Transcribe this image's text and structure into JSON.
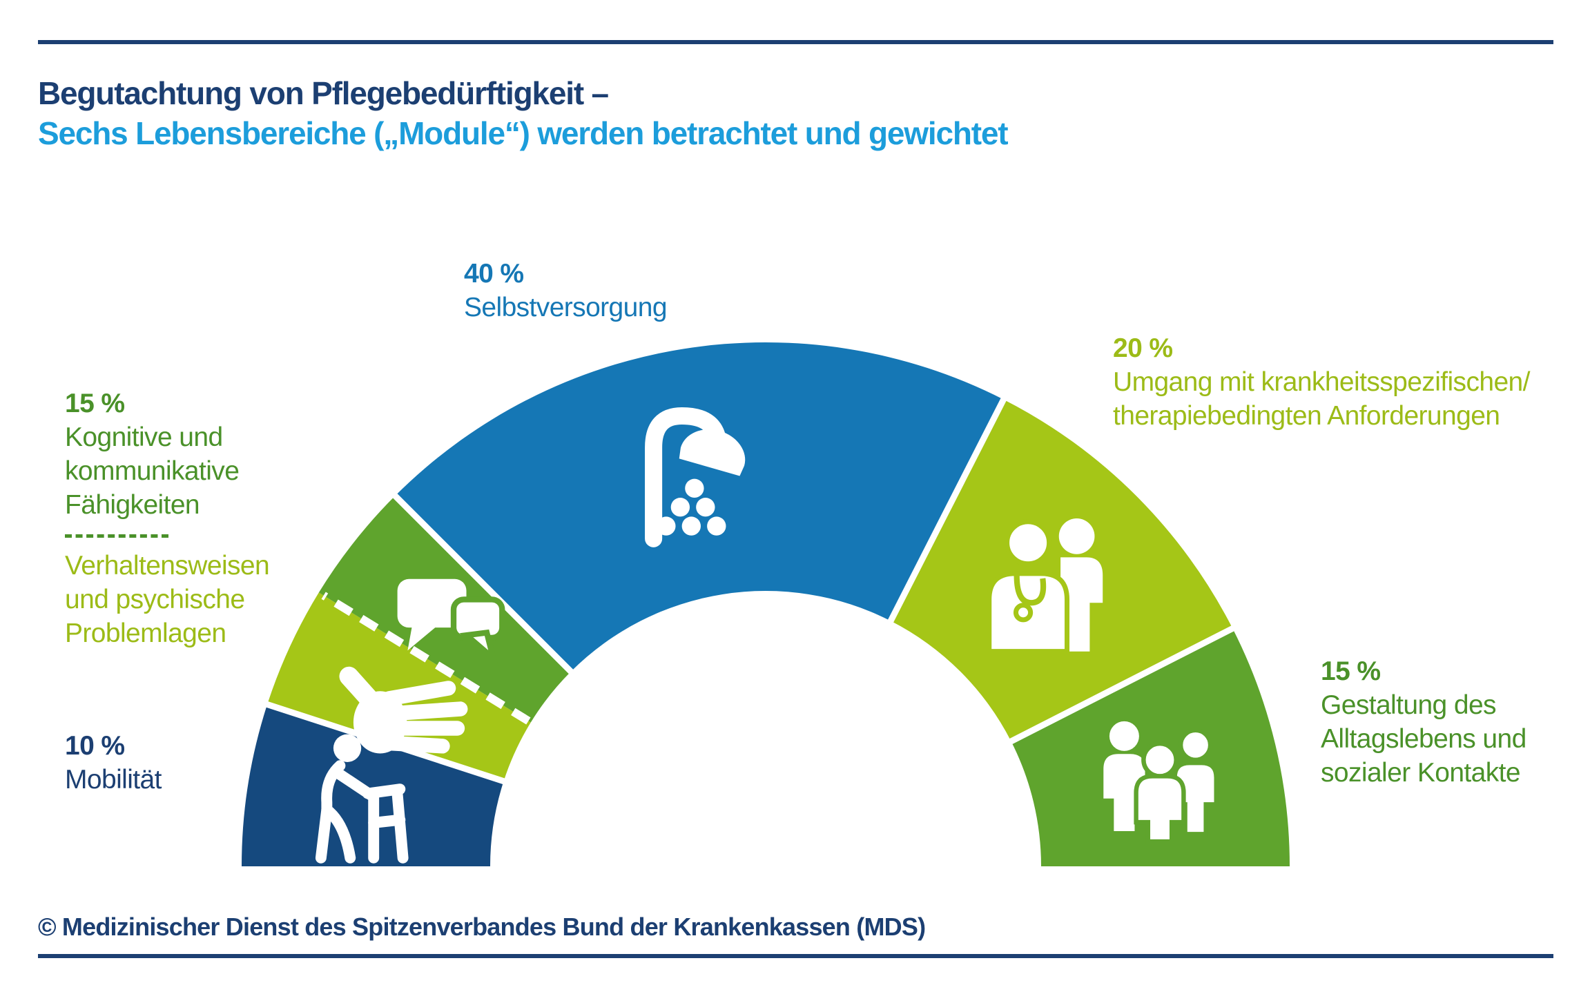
{
  "header": {
    "title_line1": "Begutachtung von Pflegebedürftigkeit –",
    "title_line2": "Sechs Lebensbereiche („Module“) werden betrachtet und gewichtet"
  },
  "footer": {
    "credit": "© Medizinischer Dienst des Spitzenverbandes Bund der Krankenkassen (MDS)"
  },
  "colors": {
    "navy": "#15497E",
    "navy_text": "#1C3F72",
    "blue": "#1577B5",
    "light_blue_text": "#1C9DDB",
    "light_green": "#A5C617",
    "light_green_text": "#9CBB17",
    "medium_green": "#5FA42D",
    "dark_green_text": "#4A9129",
    "divider_white": "#FFFFFF"
  },
  "labels": {
    "selbstversorgung": {
      "percent": "40 %",
      "lines": [
        "Selbstversorgung"
      ]
    },
    "umgang": {
      "percent": "20 %",
      "lines": [
        "Umgang mit krankheitsspezifischen/",
        "therapiebedingten Anforderungen"
      ]
    },
    "gestaltung": {
      "percent": "15 %",
      "lines": [
        "Gestaltung des",
        "Alltagslebens und",
        "sozialer Kontakte"
      ]
    },
    "kognitive": {
      "percent": "15 %",
      "lines": [
        "Kognitive und",
        "kommunikative",
        "Fähigkeiten"
      ]
    },
    "verhaltensweisen": {
      "lines": [
        "Verhaltensweisen",
        "und psychische",
        "Problemlagen"
      ]
    },
    "mobilitaet": {
      "percent": "10 %",
      "lines": [
        "Mobilität"
      ]
    }
  },
  "chart_data": {
    "type": "pie",
    "variant": "half-donut",
    "title": "Begutachtung von Pflegebedürftigkeit – Sechs Lebensbereiche („Module“) werden betrachtet und gewichtet",
    "unit": "%",
    "total_percent": 100,
    "segments": [
      {
        "id": "mobilitaet",
        "label": "Mobilität",
        "weight_percent": 10,
        "sweep_percent": 10,
        "color": "#15497E",
        "icon": "walker-person-icon",
        "divider_after": "solid"
      },
      {
        "id": "verhaltensweisen",
        "label": "Verhaltensweisen und psychische Problemlagen",
        "weight_percent": 15,
        "sweep_percent": 7.5,
        "color": "#A5C617",
        "icon": "hand-icon",
        "divider_after": "dashed"
      },
      {
        "id": "kognitive",
        "label": "Kognitive und kommunikative Fähigkeiten",
        "weight_percent": 15,
        "sweep_percent": 7.5,
        "color": "#5FA42D",
        "icon": "speech-bubbles-icon",
        "divider_after": "solid"
      },
      {
        "id": "selbstversorgung",
        "label": "Selbstversorgung",
        "weight_percent": 40,
        "sweep_percent": 40,
        "color": "#1577B5",
        "icon": "shower-icon",
        "divider_after": "solid"
      },
      {
        "id": "umgang",
        "label": "Umgang mit krankheitsspezifischen/ therapiebedingten Anforderungen",
        "weight_percent": 20,
        "sweep_percent": 20,
        "color": "#A5C617",
        "icon": "doctor-patient-icon",
        "divider_after": "solid"
      },
      {
        "id": "gestaltung",
        "label": "Gestaltung des Alltagslebens und sozialer Kontakte",
        "weight_percent": 15,
        "sweep_percent": 15,
        "color": "#5FA42D",
        "icon": "people-group-icon"
      }
    ]
  }
}
